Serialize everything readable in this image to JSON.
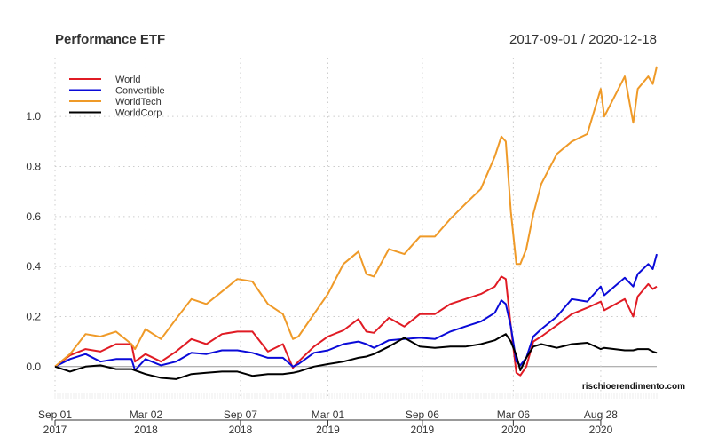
{
  "header": {
    "title": "Performance ETF",
    "date_range": "2017-09-01 / 2020-12-18"
  },
  "credit": "rischioerendimento.com",
  "chart_data": {
    "type": "line",
    "title": "Performance ETF",
    "subtitle": "2017-09-01 / 2020-12-18",
    "xlabel": "",
    "ylabel": "",
    "xlim": [
      "2017-09-01",
      "2020-12-18"
    ],
    "ylim": [
      -0.125,
      1.235
    ],
    "grid": true,
    "legend": "top-left",
    "yticks": [
      "0.0",
      "0.2",
      "0.4",
      "0.6",
      "0.8",
      "1.0"
    ],
    "xticks": [
      {
        "date": "2017-09-01",
        "line1": "Sep 01",
        "line2": "2017"
      },
      {
        "date": "2018-03-02",
        "line1": "Mar 02",
        "line2": "2018"
      },
      {
        "date": "2018-09-07",
        "line1": "Sep 07",
        "line2": "2018"
      },
      {
        "date": "2019-03-01",
        "line1": "Mar 01",
        "line2": "2019"
      },
      {
        "date": "2019-09-06",
        "line1": "Sep 06",
        "line2": "2019"
      },
      {
        "date": "2020-03-06",
        "line1": "Mar 06",
        "line2": "2020"
      },
      {
        "date": "2020-08-28",
        "line1": "Aug 28",
        "line2": "2020"
      }
    ],
    "x": [
      "2017-09-01",
      "2017-10-01",
      "2017-11-01",
      "2017-12-01",
      "2018-01-01",
      "2018-02-01",
      "2018-02-08",
      "2018-03-01",
      "2018-04-01",
      "2018-05-01",
      "2018-06-01",
      "2018-07-01",
      "2018-08-01",
      "2018-09-01",
      "2018-10-01",
      "2018-11-01",
      "2018-12-01",
      "2018-12-21",
      "2019-01-01",
      "2019-02-01",
      "2019-03-01",
      "2019-04-01",
      "2019-05-01",
      "2019-05-17",
      "2019-06-01",
      "2019-07-01",
      "2019-08-01",
      "2019-09-01",
      "2019-10-01",
      "2019-11-01",
      "2019-12-01",
      "2020-01-01",
      "2020-01-29",
      "2020-02-11",
      "2020-02-20",
      "2020-03-01",
      "2020-03-12",
      "2020-03-20",
      "2020-04-01",
      "2020-04-15",
      "2020-05-01",
      "2020-06-01",
      "2020-07-01",
      "2020-08-01",
      "2020-08-28",
      "2020-09-04",
      "2020-10-15",
      "2020-11-01",
      "2020-11-10",
      "2020-12-01",
      "2020-12-10",
      "2020-12-18"
    ],
    "series": [
      {
        "name": "World",
        "color": "#e01b24",
        "values": [
          0,
          0.045,
          0.07,
          0.06,
          0.09,
          0.09,
          0.02,
          0.05,
          0.02,
          0.06,
          0.11,
          0.09,
          0.13,
          0.14,
          0.14,
          0.06,
          0.09,
          -0.005,
          0.02,
          0.08,
          0.12,
          0.145,
          0.19,
          0.14,
          0.135,
          0.195,
          0.16,
          0.21,
          0.21,
          0.25,
          0.27,
          0.29,
          0.32,
          0.36,
          0.35,
          0.16,
          -0.025,
          -0.035,
          0,
          0.1,
          0.12,
          0.165,
          0.21,
          0.235,
          0.26,
          0.225,
          0.27,
          0.2,
          0.28,
          0.33,
          0.31,
          0.32
        ]
      },
      {
        "name": "Convertible",
        "color": "#0a0ad8",
        "values": [
          0,
          0.03,
          0.05,
          0.02,
          0.03,
          0.03,
          -0.015,
          0.03,
          0.005,
          0.02,
          0.055,
          0.05,
          0.065,
          0.065,
          0.055,
          0.035,
          0.035,
          0,
          0.01,
          0.055,
          0.065,
          0.09,
          0.1,
          0.09,
          0.075,
          0.105,
          0.11,
          0.115,
          0.11,
          0.14,
          0.16,
          0.18,
          0.215,
          0.265,
          0.25,
          0.16,
          0.02,
          0.005,
          0.035,
          0.12,
          0.15,
          0.2,
          0.27,
          0.26,
          0.32,
          0.285,
          0.355,
          0.32,
          0.37,
          0.41,
          0.39,
          0.45
        ]
      },
      {
        "name": "WorldTech",
        "color": "#ef9a28",
        "values": [
          0,
          0.05,
          0.13,
          0.12,
          0.14,
          0.09,
          0.07,
          0.15,
          0.11,
          0.19,
          0.27,
          0.25,
          0.3,
          0.35,
          0.34,
          0.25,
          0.21,
          0.11,
          0.12,
          0.21,
          0.29,
          0.41,
          0.46,
          0.37,
          0.36,
          0.47,
          0.45,
          0.52,
          0.52,
          0.59,
          0.65,
          0.71,
          0.84,
          0.92,
          0.9,
          0.62,
          0.41,
          0.41,
          0.47,
          0.61,
          0.73,
          0.85,
          0.9,
          0.93,
          1.11,
          1.0,
          1.16,
          0.975,
          1.11,
          1.16,
          1.13,
          1.2
        ]
      },
      {
        "name": "WorldCorp",
        "color": "#000000",
        "values": [
          0,
          -0.02,
          0,
          0.005,
          -0.01,
          -0.01,
          -0.015,
          -0.03,
          -0.045,
          -0.05,
          -0.03,
          -0.025,
          -0.02,
          -0.02,
          -0.037,
          -0.03,
          -0.03,
          -0.025,
          -0.02,
          0,
          0.01,
          0.02,
          0.035,
          0.04,
          0.05,
          0.08,
          0.115,
          0.08,
          0.075,
          0.08,
          0.08,
          0.09,
          0.105,
          0.12,
          0.13,
          0.1,
          0.045,
          -0.015,
          0.035,
          0.08,
          0.09,
          0.075,
          0.09,
          0.095,
          0.07,
          0.075,
          0.065,
          0.065,
          0.07,
          0.07,
          0.06,
          0.055
        ]
      }
    ]
  }
}
